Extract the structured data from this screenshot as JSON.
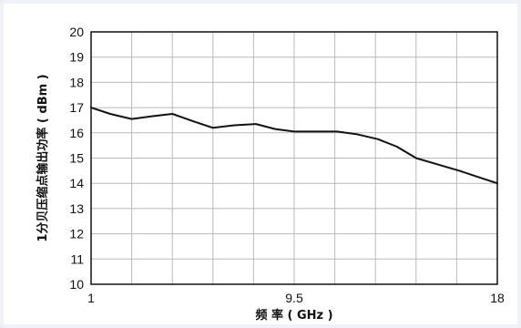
{
  "chart_data": {
    "type": "line",
    "title": "",
    "xlabel": "频 率 ( GHz )",
    "ylabel": "1分贝压缩点输出功率 ( dBm )",
    "xlim": [
      1,
      18
    ],
    "ylim": [
      10,
      20
    ],
    "x_tick_labels": [
      "1",
      "9.5",
      "18"
    ],
    "y_tick_labels": [
      "10",
      "11",
      "12",
      "13",
      "14",
      "15",
      "16",
      "17",
      "18",
      "19",
      "20"
    ],
    "grid": true,
    "legend": "none",
    "colors": {
      "line": "#111111",
      "grid": "#b9b9b9",
      "frame": "#111111"
    },
    "series": [
      {
        "x": [
          1,
          1.8,
          2.7,
          3.5,
          4.4,
          5.3,
          6.1,
          7.0,
          7.9,
          8.7,
          9.5,
          10.4,
          11.3,
          12.1,
          13.0,
          13.8,
          14.6,
          15.5,
          16.4,
          17.2,
          18.0
        ],
        "y": [
          17.0,
          16.75,
          16.55,
          16.65,
          16.75,
          16.45,
          16.2,
          16.3,
          16.35,
          16.15,
          16.05,
          16.05,
          16.05,
          15.95,
          15.75,
          15.45,
          15.0,
          14.75,
          14.5,
          14.25,
          14.0
        ]
      }
    ]
  }
}
